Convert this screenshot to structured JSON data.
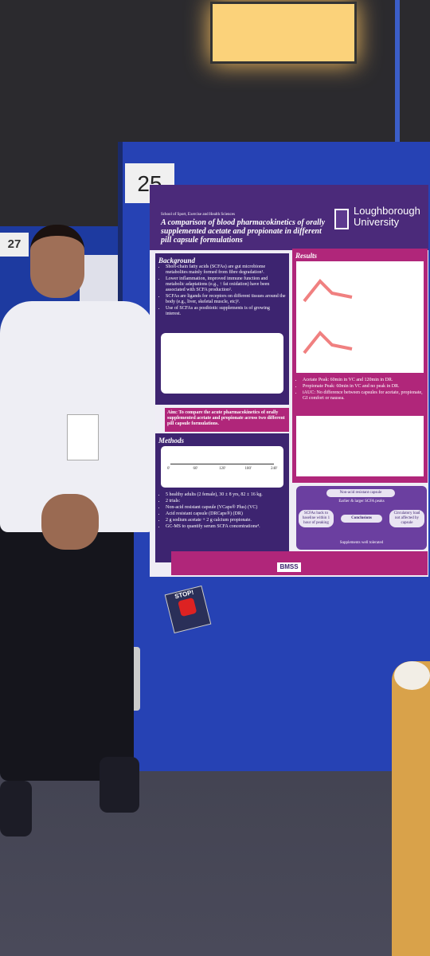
{
  "boards": {
    "main_number": "25",
    "side_number": "27"
  },
  "poster": {
    "school": "School of Sport, Exercise and Health Sciences",
    "title": "A comparison of blood pharmacokinetics of orally supplemented acetate and propionate in different pill capsule formulations",
    "university": "Loughborough University",
    "background": {
      "heading": "Background",
      "bullets": [
        "Short-chain fatty acids (SCFAs) are gut microbiome metabolites mainly formed from fibre degradation¹.",
        "Lower inflammation, improved immune function and metabolic adaptations (e.g., ↑ fat oxidation) have been associated with SCFA production².",
        "SCFAs are ligands for receptors on different tissues around the body (e.g., liver, skeletal muscle, etc)³.",
        "Use of SCFAs as postbiotic supplements is of growing interest."
      ]
    },
    "aim": "Aim: To compare the acute pharmacokinetics of orally supplemented acetate and propionate across two different pill capsule formulations.",
    "methods": {
      "heading": "Methods",
      "timeline": [
        "0'",
        "60'",
        "120'",
        "180'",
        "240'"
      ],
      "bullets": [
        "5 healthy adults (2 female), 30 ± 8 yrs, 82 ± 16 kg.",
        "2 trials:",
        "Non-acid resistant capsule (VCaps® Plus) (VC)",
        "Acid resistant capsule (DRCaps®) (DR)",
        "2 g sodium acetate + 2 g calcium propionate.",
        "GC-MS to quantify serum SCFA concentrations⁴."
      ]
    },
    "results": {
      "heading": "Results",
      "bullets": [
        "Acetate Peak: 60min in VC and 120min in DR.",
        "Propionate Peak: 60min in VC and no peak in DR.",
        "iAUC: No difference between capsules for acetate, propionate, GI comfort or nausea."
      ]
    },
    "conclusions": {
      "heading": "Conclusions",
      "top": "Non-acid resistant capsule",
      "sub": "Earlier & larger SCFA peaks",
      "left": "SCFAs back to baseline within 1 hour of peaking",
      "right": "Circulatory load not affected by capsule",
      "bottom": "Supplements well tolerated"
    },
    "footer": {
      "logo": "BMSS"
    }
  },
  "sign": "STOP!"
}
